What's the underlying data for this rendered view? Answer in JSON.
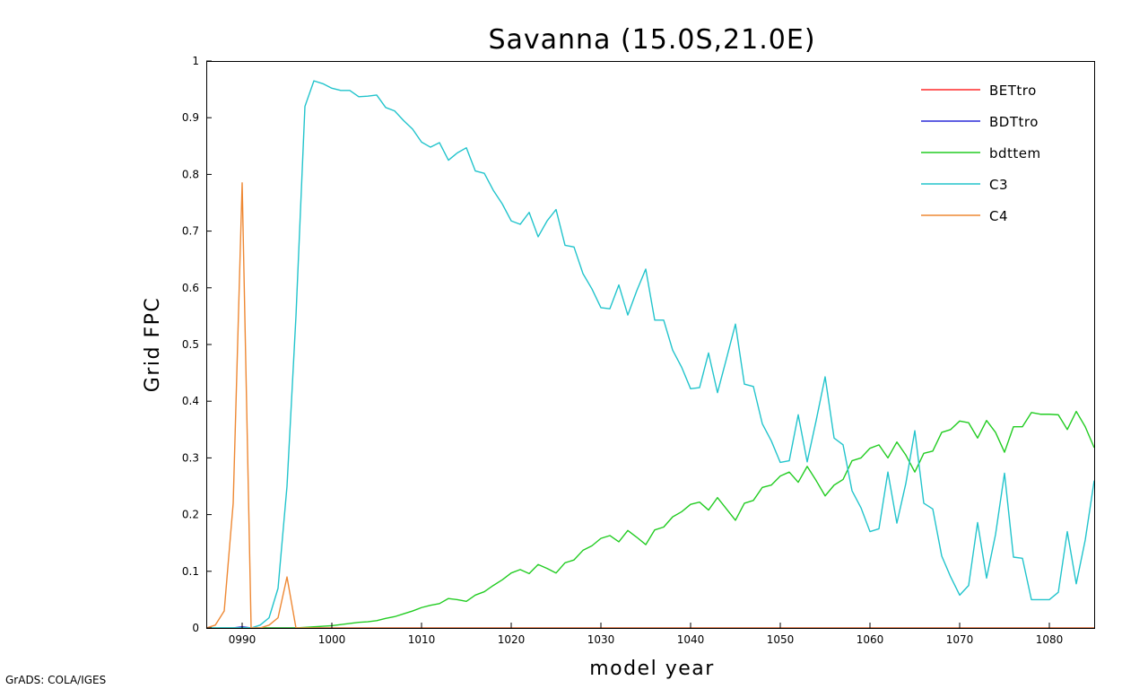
{
  "footer": "GrADS: COLA/IGES",
  "chart_data": {
    "type": "line",
    "title": "Savanna (15.0S,21.0E)",
    "xlabel": "model year",
    "ylabel": "Grid FPC",
    "xlim": [
      986,
      1085
    ],
    "ylim": [
      0,
      1
    ],
    "x_ticks": [
      990,
      1000,
      1010,
      1020,
      1030,
      1040,
      1050,
      1060,
      1070,
      1080
    ],
    "x_tick_labels": [
      "0990",
      "1000",
      "1010",
      "1020",
      "1030",
      "1040",
      "1050",
      "1060",
      "1070",
      "1080"
    ],
    "y_ticks": [
      0,
      0.1,
      0.2,
      0.3,
      0.4,
      0.5,
      0.6,
      0.7,
      0.8,
      0.9,
      1
    ],
    "y_tick_labels": [
      "0",
      "0.1",
      "0.2",
      "0.3",
      "0.4",
      "0.5",
      "0.6",
      "0.7",
      "0.8",
      "0.9",
      "1"
    ],
    "grid": false,
    "legend_position": "top-right",
    "series": [
      {
        "name": "BETtro",
        "color": "#ff2a2a",
        "points": [
          [
            986,
            0
          ],
          [
            1085,
            0
          ]
        ]
      },
      {
        "name": "BDTtro",
        "color": "#2a2ad8",
        "points": [
          [
            986,
            0
          ],
          [
            989,
            0
          ],
          [
            990,
            0.002
          ],
          [
            991,
            0
          ],
          [
            1085,
            0
          ]
        ]
      },
      {
        "name": "bdttem",
        "color": "#22cc22",
        "points": [
          [
            986,
            0
          ],
          [
            996,
            0
          ],
          [
            997,
            0.001
          ],
          [
            998,
            0.002
          ],
          [
            999,
            0.003
          ],
          [
            1000,
            0.004
          ],
          [
            1001,
            0.006
          ],
          [
            1002,
            0.008
          ],
          [
            1003,
            0.01
          ],
          [
            1004,
            0.011
          ],
          [
            1005,
            0.013
          ],
          [
            1006,
            0.017
          ],
          [
            1007,
            0.02
          ],
          [
            1008,
            0.025
          ],
          [
            1009,
            0.03
          ],
          [
            1010,
            0.036
          ],
          [
            1011,
            0.04
          ],
          [
            1012,
            0.043
          ],
          [
            1013,
            0.052
          ],
          [
            1014,
            0.05
          ],
          [
            1015,
            0.047
          ],
          [
            1016,
            0.058
          ],
          [
            1017,
            0.064
          ],
          [
            1018,
            0.075
          ],
          [
            1019,
            0.085
          ],
          [
            1020,
            0.097
          ],
          [
            1021,
            0.103
          ],
          [
            1022,
            0.096
          ],
          [
            1023,
            0.112
          ],
          [
            1024,
            0.105
          ],
          [
            1025,
            0.097
          ],
          [
            1026,
            0.115
          ],
          [
            1027,
            0.12
          ],
          [
            1028,
            0.137
          ],
          [
            1029,
            0.145
          ],
          [
            1030,
            0.158
          ],
          [
            1031,
            0.163
          ],
          [
            1032,
            0.152
          ],
          [
            1033,
            0.172
          ],
          [
            1034,
            0.16
          ],
          [
            1035,
            0.147
          ],
          [
            1036,
            0.173
          ],
          [
            1037,
            0.178
          ],
          [
            1038,
            0.196
          ],
          [
            1039,
            0.205
          ],
          [
            1040,
            0.218
          ],
          [
            1041,
            0.222
          ],
          [
            1042,
            0.208
          ],
          [
            1043,
            0.23
          ],
          [
            1044,
            0.21
          ],
          [
            1045,
            0.19
          ],
          [
            1046,
            0.22
          ],
          [
            1047,
            0.225
          ],
          [
            1048,
            0.248
          ],
          [
            1049,
            0.252
          ],
          [
            1050,
            0.268
          ],
          [
            1051,
            0.275
          ],
          [
            1052,
            0.257
          ],
          [
            1053,
            0.285
          ],
          [
            1054,
            0.26
          ],
          [
            1055,
            0.233
          ],
          [
            1056,
            0.252
          ],
          [
            1057,
            0.262
          ],
          [
            1058,
            0.295
          ],
          [
            1059,
            0.3
          ],
          [
            1060,
            0.317
          ],
          [
            1061,
            0.323
          ],
          [
            1062,
            0.3
          ],
          [
            1063,
            0.328
          ],
          [
            1064,
            0.305
          ],
          [
            1065,
            0.275
          ],
          [
            1066,
            0.308
          ],
          [
            1067,
            0.312
          ],
          [
            1068,
            0.345
          ],
          [
            1069,
            0.35
          ],
          [
            1070,
            0.365
          ],
          [
            1071,
            0.362
          ],
          [
            1072,
            0.335
          ],
          [
            1073,
            0.366
          ],
          [
            1074,
            0.345
          ],
          [
            1075,
            0.31
          ],
          [
            1076,
            0.355
          ],
          [
            1077,
            0.355
          ],
          [
            1078,
            0.38
          ],
          [
            1079,
            0.377
          ],
          [
            1080,
            0.377
          ],
          [
            1081,
            0.376
          ],
          [
            1082,
            0.35
          ],
          [
            1083,
            0.382
          ],
          [
            1084,
            0.355
          ],
          [
            1085,
            0.318
          ]
        ]
      },
      {
        "name": "C3",
        "color": "#22c4cc",
        "points": [
          [
            986,
            0
          ],
          [
            991,
            0
          ],
          [
            992,
            0.005
          ],
          [
            993,
            0.018
          ],
          [
            994,
            0.07
          ],
          [
            995,
            0.25
          ],
          [
            996,
            0.55
          ],
          [
            997,
            0.92
          ],
          [
            998,
            0.965
          ],
          [
            999,
            0.96
          ],
          [
            1000,
            0.952
          ],
          [
            1001,
            0.948
          ],
          [
            1002,
            0.948
          ],
          [
            1003,
            0.937
          ],
          [
            1004,
            0.938
          ],
          [
            1005,
            0.94
          ],
          [
            1006,
            0.918
          ],
          [
            1007,
            0.912
          ],
          [
            1008,
            0.895
          ],
          [
            1009,
            0.88
          ],
          [
            1010,
            0.857
          ],
          [
            1011,
            0.848
          ],
          [
            1012,
            0.856
          ],
          [
            1013,
            0.825
          ],
          [
            1014,
            0.838
          ],
          [
            1015,
            0.847
          ],
          [
            1016,
            0.806
          ],
          [
            1017,
            0.802
          ],
          [
            1018,
            0.772
          ],
          [
            1019,
            0.748
          ],
          [
            1020,
            0.718
          ],
          [
            1021,
            0.712
          ],
          [
            1022,
            0.733
          ],
          [
            1023,
            0.69
          ],
          [
            1024,
            0.718
          ],
          [
            1025,
            0.738
          ],
          [
            1026,
            0.675
          ],
          [
            1027,
            0.672
          ],
          [
            1028,
            0.625
          ],
          [
            1029,
            0.598
          ],
          [
            1030,
            0.565
          ],
          [
            1031,
            0.563
          ],
          [
            1032,
            0.605
          ],
          [
            1033,
            0.552
          ],
          [
            1034,
            0.595
          ],
          [
            1035,
            0.633
          ],
          [
            1036,
            0.543
          ],
          [
            1037,
            0.543
          ],
          [
            1038,
            0.49
          ],
          [
            1039,
            0.46
          ],
          [
            1040,
            0.422
          ],
          [
            1041,
            0.424
          ],
          [
            1042,
            0.485
          ],
          [
            1043,
            0.415
          ],
          [
            1044,
            0.475
          ],
          [
            1045,
            0.536
          ],
          [
            1046,
            0.43
          ],
          [
            1047,
            0.426
          ],
          [
            1048,
            0.36
          ],
          [
            1049,
            0.33
          ],
          [
            1050,
            0.292
          ],
          [
            1051,
            0.295
          ],
          [
            1052,
            0.376
          ],
          [
            1053,
            0.293
          ],
          [
            1054,
            0.366
          ],
          [
            1055,
            0.443
          ],
          [
            1056,
            0.335
          ],
          [
            1057,
            0.323
          ],
          [
            1058,
            0.242
          ],
          [
            1059,
            0.212
          ],
          [
            1060,
            0.17
          ],
          [
            1061,
            0.175
          ],
          [
            1062,
            0.275
          ],
          [
            1063,
            0.185
          ],
          [
            1064,
            0.255
          ],
          [
            1065,
            0.348
          ],
          [
            1066,
            0.22
          ],
          [
            1067,
            0.21
          ],
          [
            1068,
            0.127
          ],
          [
            1069,
            0.09
          ],
          [
            1070,
            0.058
          ],
          [
            1071,
            0.075
          ],
          [
            1072,
            0.186
          ],
          [
            1073,
            0.088
          ],
          [
            1074,
            0.165
          ],
          [
            1075,
            0.273
          ],
          [
            1076,
            0.125
          ],
          [
            1077,
            0.123
          ],
          [
            1078,
            0.05
          ],
          [
            1079,
            0.05
          ],
          [
            1080,
            0.05
          ],
          [
            1081,
            0.063
          ],
          [
            1082,
            0.17
          ],
          [
            1083,
            0.078
          ],
          [
            1084,
            0.155
          ],
          [
            1085,
            0.26
          ]
        ]
      },
      {
        "name": "C4",
        "color": "#ee8833",
        "points": [
          [
            986,
            0
          ],
          [
            987,
            0.005
          ],
          [
            988,
            0.03
          ],
          [
            989,
            0.22
          ],
          [
            990,
            0.785
          ],
          [
            991,
            0
          ],
          [
            992,
            0
          ],
          [
            993,
            0.005
          ],
          [
            994,
            0.018
          ],
          [
            995,
            0.09
          ],
          [
            996,
            0
          ],
          [
            1085,
            0
          ]
        ]
      }
    ]
  }
}
